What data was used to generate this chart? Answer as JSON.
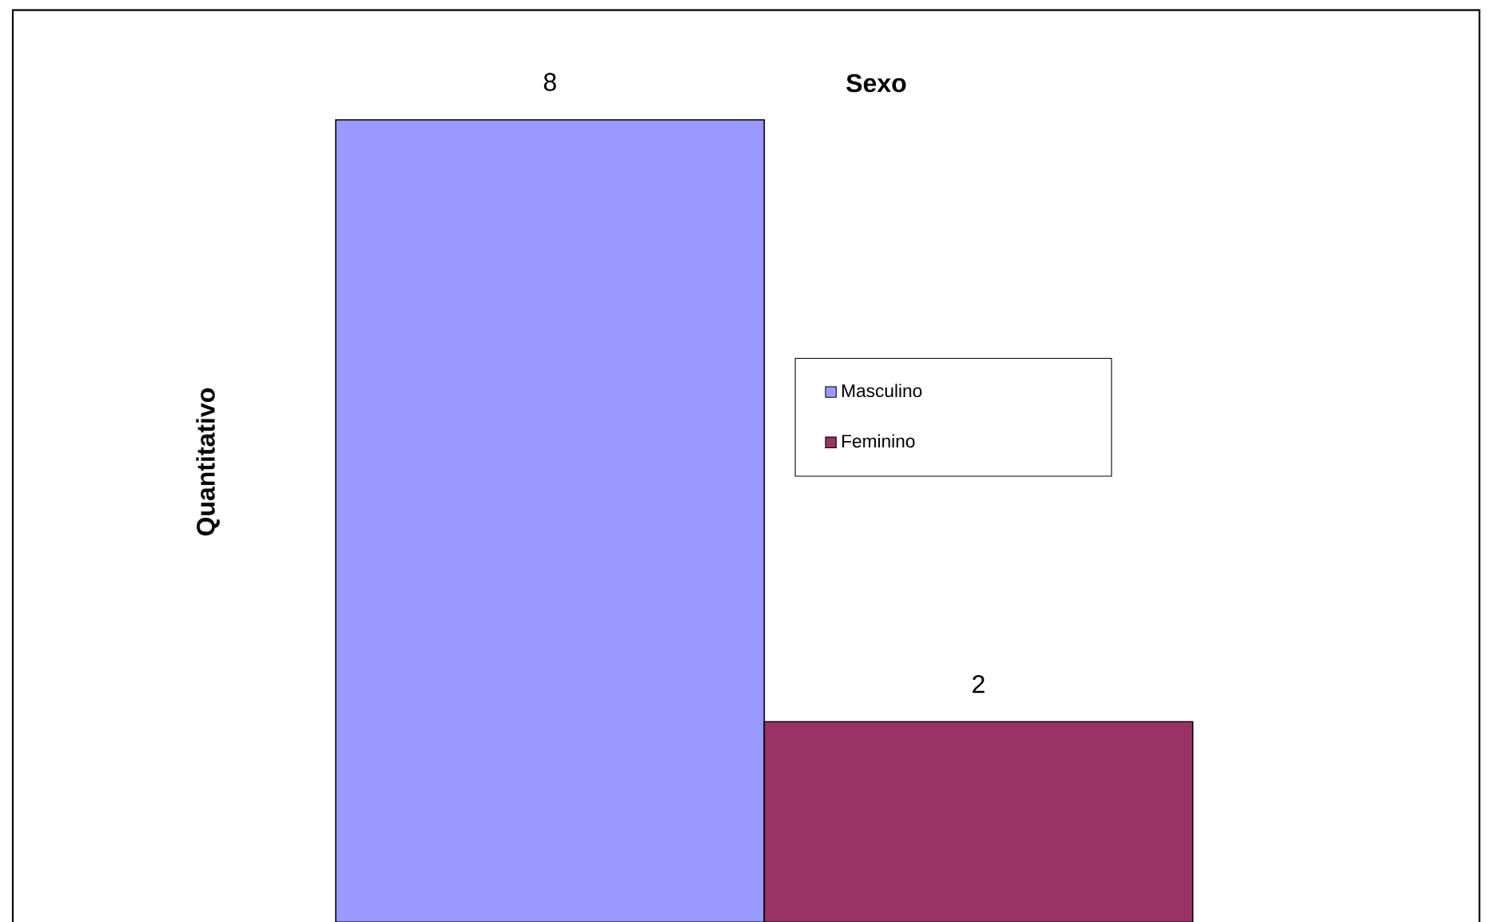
{
  "chart_data": {
    "type": "bar",
    "title": "Sexo",
    "ylabel": "Quantitativo",
    "categories": [
      null
    ],
    "data_labels": true,
    "legend": "right",
    "series": [
      {
        "name": "Masculino",
        "color": "#9999ff",
        "values": [
          8
        ]
      },
      {
        "name": "Feminino",
        "color": "#993366",
        "values": [
          2
        ]
      }
    ]
  }
}
